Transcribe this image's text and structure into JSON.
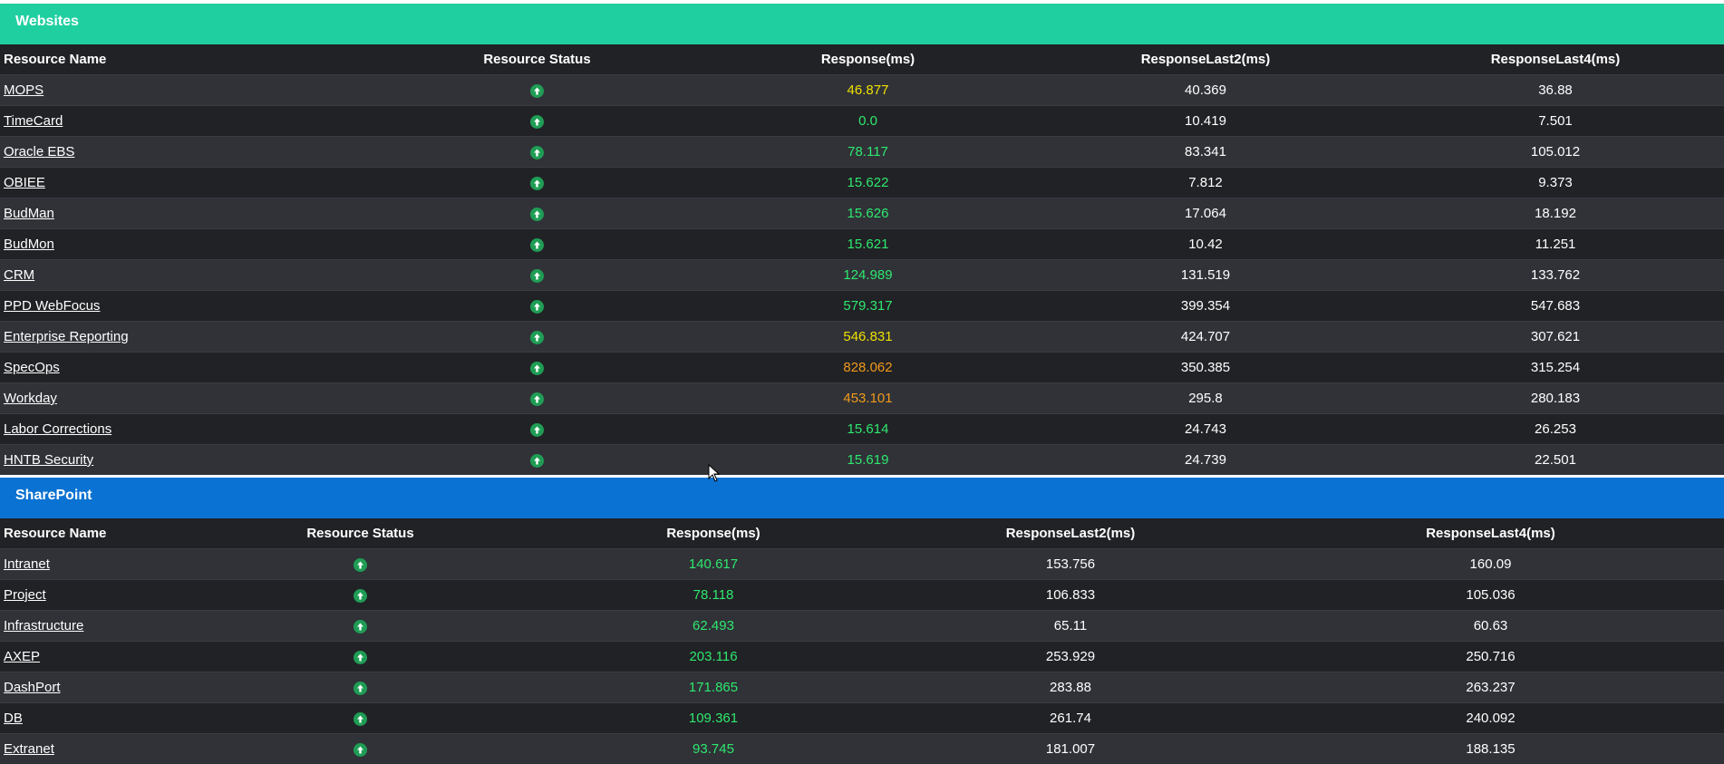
{
  "colors": {
    "websites_header": "#20cfa0",
    "sharepoint_header": "#0a72d2",
    "green": "#2ee86e",
    "yellow": "#f0e000",
    "orange": "#f09a1a"
  },
  "columns": [
    "Resource Name",
    "Resource Status",
    "Response(ms)",
    "ResponseLast2(ms)",
    "ResponseLast4(ms)"
  ],
  "websites": {
    "title": "Websites",
    "rows": [
      {
        "name": "MOPS",
        "status": "up-arrow-icon",
        "response": "46.877",
        "response_color": "yellow",
        "last2": "40.369",
        "last4": "36.88"
      },
      {
        "name": "TimeCard",
        "status": "up-arrow-icon",
        "response": "0.0",
        "response_color": "green",
        "last2": "10.419",
        "last4": "7.501"
      },
      {
        "name": "Oracle EBS",
        "status": "up-arrow-icon",
        "response": "78.117",
        "response_color": "green",
        "last2": "83.341",
        "last4": "105.012"
      },
      {
        "name": "OBIEE",
        "status": "up-arrow-icon",
        "response": "15.622",
        "response_color": "green",
        "last2": "7.812",
        "last4": "9.373"
      },
      {
        "name": "BudMan",
        "status": "up-arrow-icon",
        "response": "15.626",
        "response_color": "green",
        "last2": "17.064",
        "last4": "18.192"
      },
      {
        "name": "BudMon",
        "status": "up-arrow-icon",
        "response": "15.621",
        "response_color": "green",
        "last2": "10.42",
        "last4": "11.251"
      },
      {
        "name": "CRM",
        "status": "up-arrow-icon",
        "response": "124.989",
        "response_color": "green",
        "last2": "131.519",
        "last4": "133.762"
      },
      {
        "name": "PPD WebFocus",
        "status": "up-arrow-icon",
        "response": "579.317",
        "response_color": "green",
        "last2": "399.354",
        "last4": "547.683"
      },
      {
        "name": "Enterprise Reporting",
        "status": "up-arrow-icon",
        "response": "546.831",
        "response_color": "yellow",
        "last2": "424.707",
        "last4": "307.621"
      },
      {
        "name": "SpecOps",
        "status": "up-arrow-icon",
        "response": "828.062",
        "response_color": "orange",
        "last2": "350.385",
        "last4": "315.254"
      },
      {
        "name": "Workday",
        "status": "up-arrow-icon",
        "response": "453.101",
        "response_color": "orange",
        "last2": "295.8",
        "last4": "280.183"
      },
      {
        "name": "Labor Corrections",
        "status": "up-arrow-icon",
        "response": "15.614",
        "response_color": "green",
        "last2": "24.743",
        "last4": "26.253"
      },
      {
        "name": "HNTB Security",
        "status": "up-arrow-icon",
        "response": "15.619",
        "response_color": "green",
        "last2": "24.739",
        "last4": "22.501"
      }
    ]
  },
  "sharepoint": {
    "title": "SharePoint",
    "rows": [
      {
        "name": "Intranet",
        "status": "up-arrow-icon",
        "response": "140.617",
        "response_color": "green",
        "last2": "153.756",
        "last4": "160.09"
      },
      {
        "name": "Project",
        "status": "up-arrow-icon",
        "response": "78.118",
        "response_color": "green",
        "last2": "106.833",
        "last4": "105.036"
      },
      {
        "name": "Infrastructure",
        "status": "up-arrow-icon",
        "response": "62.493",
        "response_color": "green",
        "last2": "65.11",
        "last4": "60.63"
      },
      {
        "name": "AXEP",
        "status": "up-arrow-icon",
        "response": "203.116",
        "response_color": "green",
        "last2": "253.929",
        "last4": "250.716"
      },
      {
        "name": "DashPort",
        "status": "up-arrow-icon",
        "response": "171.865",
        "response_color": "green",
        "last2": "283.88",
        "last4": "263.237"
      },
      {
        "name": "DB",
        "status": "up-arrow-icon",
        "response": "109.361",
        "response_color": "green",
        "last2": "261.74",
        "last4": "240.092"
      },
      {
        "name": "Extranet",
        "status": "up-arrow-icon",
        "response": "93.745",
        "response_color": "green",
        "last2": "181.007",
        "last4": "188.135"
      }
    ]
  }
}
